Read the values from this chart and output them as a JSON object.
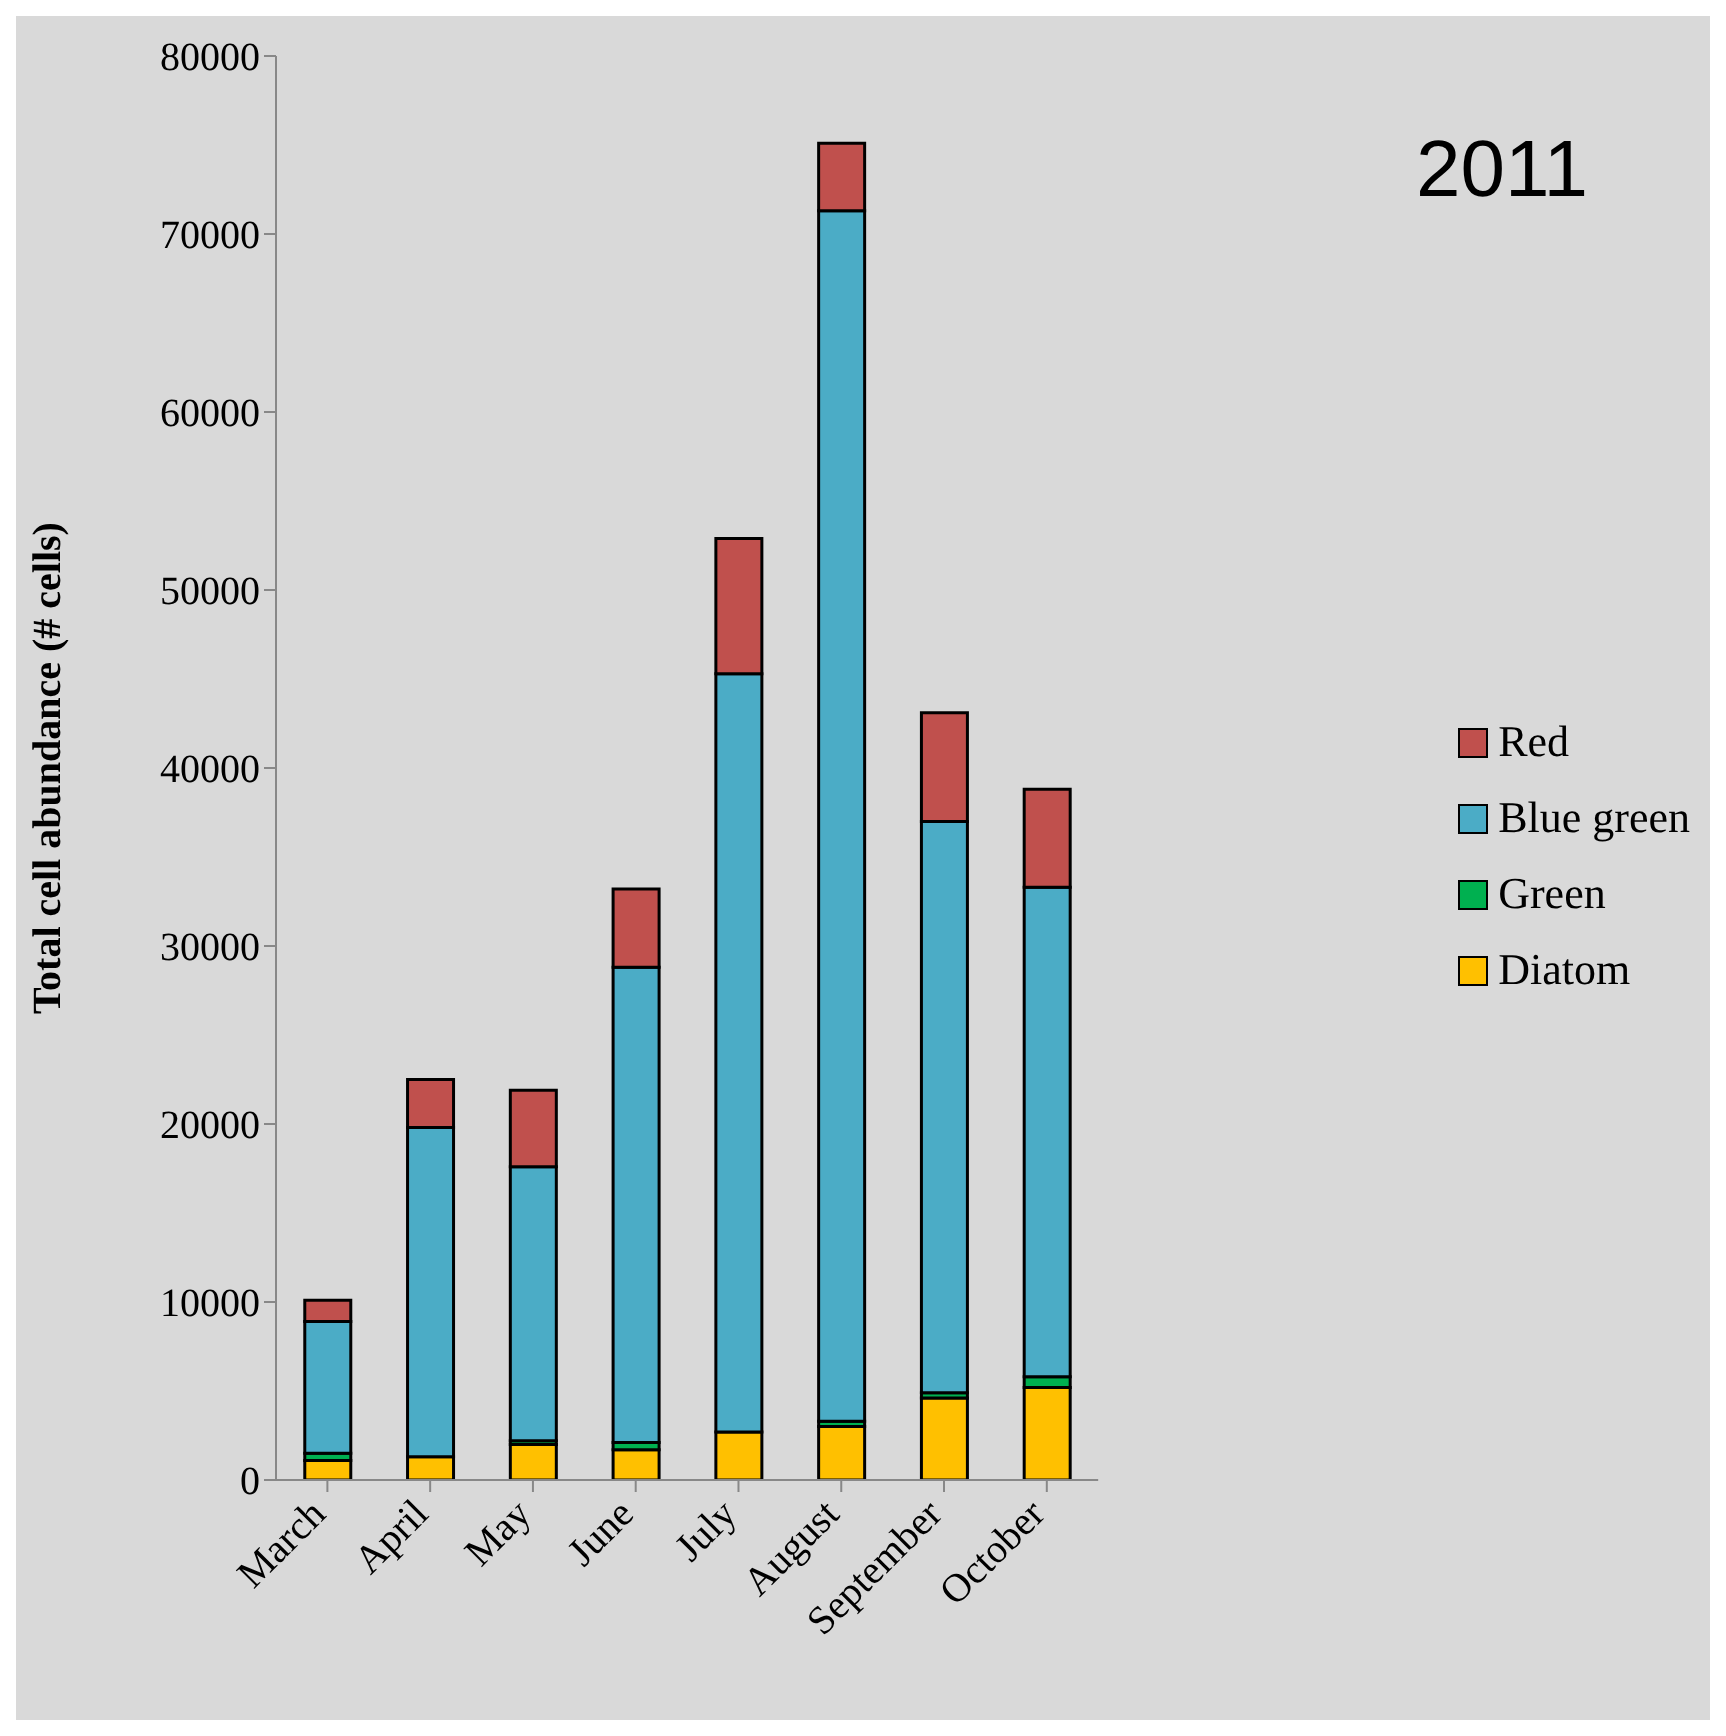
{
  "chart_data": {
    "type": "bar",
    "title": "2011",
    "ylabel": "Total cell abundance (# cells)",
    "stacked": true,
    "categories": [
      "March",
      "April",
      "May",
      "June",
      "July",
      "August",
      "September",
      "October"
    ],
    "series": [
      {
        "name": "Diatom",
        "color": "#ffc000",
        "values": [
          1100,
          1300,
          2000,
          1700,
          2700,
          3000,
          4600,
          5200
        ]
      },
      {
        "name": "Green",
        "color": "#00b050",
        "values": [
          400,
          null,
          200,
          400,
          null,
          300,
          300,
          600
        ]
      },
      {
        "name": "Blue green",
        "color": "#4bacc6",
        "values": [
          7400,
          18500,
          15400,
          26700,
          42600,
          68000,
          32100,
          27500
        ]
      },
      {
        "name": "Red",
        "color": "#c0504d",
        "values": [
          1200,
          2700,
          4300,
          4400,
          7600,
          3800,
          6100,
          5500
        ]
      }
    ],
    "ylim": [
      0,
      80000
    ],
    "yticks": [
      0,
      10000,
      20000,
      30000,
      40000,
      50000,
      60000,
      70000,
      80000
    ],
    "grid": false,
    "legend": "right"
  }
}
